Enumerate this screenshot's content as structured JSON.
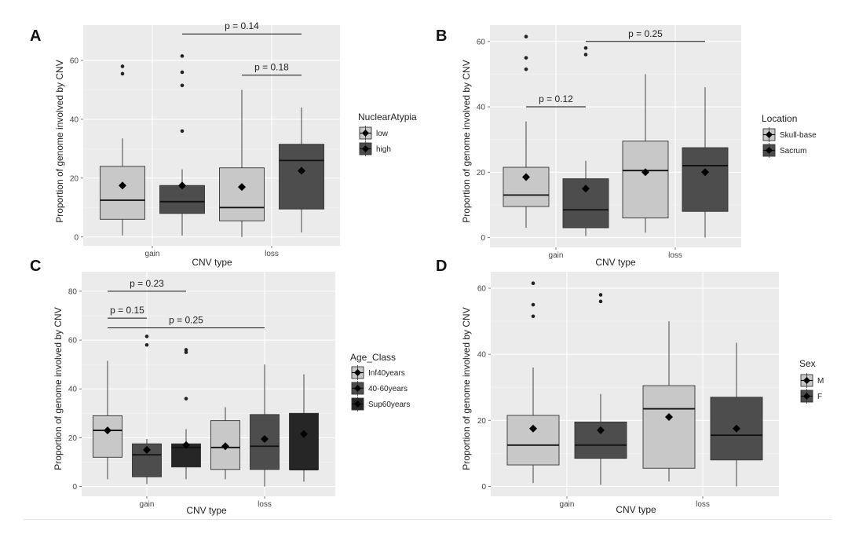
{
  "colors": {
    "panel_bg": "#ebebeb",
    "grid_major": "#ffffff",
    "fill_light": "#c8c8c8",
    "fill_mid": "#4d4d4d",
    "fill_dark": "#262626",
    "line": "#333333",
    "text": "#222222"
  },
  "chart_data": [
    {
      "panel_label": "A",
      "type": "box",
      "xlabel": "CNV type",
      "ylabel": "Proportion of genome involved by CNV",
      "categories": [
        "gain",
        "loss"
      ],
      "ylim": [
        -3,
        72
      ],
      "yticks": [
        0,
        20,
        40,
        60
      ],
      "legend": {
        "title": "NuclearAtypia",
        "position": "right",
        "entries": [
          {
            "label": "low",
            "fill": "#c8c8c8"
          },
          {
            "label": "high",
            "fill": "#4d4d4d"
          }
        ]
      },
      "boxes": [
        {
          "category": "gain",
          "group": "low",
          "fill": "#c8c8c8",
          "min": 0.5,
          "q1": 6,
          "median": 12.5,
          "q3": 24,
          "max": 33.5,
          "mean": 17.5,
          "outliers": [
            55.5,
            58
          ]
        },
        {
          "category": "gain",
          "group": "high",
          "fill": "#4d4d4d",
          "min": 0.5,
          "q1": 8,
          "median": 12,
          "q3": 17.5,
          "max": 23,
          "mean": 17.5,
          "outliers": [
            36,
            51.5,
            56,
            61.5
          ]
        },
        {
          "category": "loss",
          "group": "low",
          "fill": "#c8c8c8",
          "min": 0,
          "q1": 5.5,
          "median": 10,
          "q3": 23.5,
          "max": 50,
          "mean": 17,
          "outliers": []
        },
        {
          "category": "loss",
          "group": "high",
          "fill": "#4d4d4d",
          "min": 1.5,
          "q1": 9.5,
          "median": 26,
          "q3": 31.5,
          "max": 44,
          "mean": 22.5,
          "outliers": []
        }
      ],
      "comparisons": [
        {
          "label": "p = 0.14",
          "from_box": 1,
          "to_box": 3,
          "y": 69
        },
        {
          "label": "p = 0.18",
          "from_box": 2,
          "to_box": 3,
          "y": 55
        }
      ]
    },
    {
      "panel_label": "B",
      "type": "box",
      "xlabel": "CNV type",
      "ylabel": "Proportion of genome involved by CNV",
      "categories": [
        "gain",
        "loss"
      ],
      "ylim": [
        -3,
        65
      ],
      "yticks": [
        0,
        20,
        40,
        60
      ],
      "legend": {
        "title": "Location",
        "position": "right",
        "entries": [
          {
            "label": "Skull-base",
            "fill": "#c8c8c8"
          },
          {
            "label": "Sacrum",
            "fill": "#4d4d4d"
          }
        ]
      },
      "boxes": [
        {
          "category": "gain",
          "group": "Skull-base",
          "fill": "#c8c8c8",
          "min": 3,
          "q1": 9.5,
          "median": 13,
          "q3": 21.5,
          "max": 35.5,
          "mean": 18.5,
          "outliers": [
            51.5,
            55,
            61.5
          ]
        },
        {
          "category": "gain",
          "group": "Sacrum",
          "fill": "#4d4d4d",
          "min": 0.5,
          "q1": 3,
          "median": 8.5,
          "q3": 18,
          "max": 23.5,
          "mean": 15,
          "outliers": [
            56,
            58
          ]
        },
        {
          "category": "loss",
          "group": "Skull-base",
          "fill": "#c8c8c8",
          "min": 1.5,
          "q1": 6,
          "median": 20.5,
          "q3": 29.5,
          "max": 50,
          "mean": 20,
          "outliers": []
        },
        {
          "category": "loss",
          "group": "Sacrum",
          "fill": "#4d4d4d",
          "min": 0,
          "q1": 8,
          "median": 22,
          "q3": 27.5,
          "max": 46,
          "mean": 20,
          "outliers": []
        }
      ],
      "comparisons": [
        {
          "label": "p = 0.12",
          "from_box": 0,
          "to_box": 1,
          "y": 40
        },
        {
          "label": "p = 0.25",
          "from_box": 1,
          "to_box": 3,
          "y": 60
        }
      ]
    },
    {
      "panel_label": "C",
      "type": "box",
      "xlabel": "CNV type",
      "ylabel": "Proportion of genome involved by CNV",
      "categories": [
        "gain",
        "loss"
      ],
      "ylim": [
        -4,
        88
      ],
      "yticks": [
        0,
        20,
        40,
        60,
        80
      ],
      "legend": {
        "title": "Age_Class",
        "position": "right",
        "entries": [
          {
            "label": "Inf40years",
            "fill": "#c8c8c8"
          },
          {
            "label": "40-60years",
            "fill": "#4d4d4d"
          },
          {
            "label": "Sup60years",
            "fill": "#262626"
          }
        ]
      },
      "boxes": [
        {
          "category": "gain",
          "group": "Inf40years",
          "fill": "#c8c8c8",
          "min": 3,
          "q1": 12,
          "median": 23,
          "q3": 29,
          "max": 51.5,
          "mean": 23,
          "outliers": []
        },
        {
          "category": "gain",
          "group": "40-60years",
          "fill": "#4d4d4d",
          "min": 1,
          "q1": 4,
          "median": 13,
          "q3": 17.5,
          "max": 19.5,
          "mean": 15,
          "outliers": [
            58,
            61.5
          ]
        },
        {
          "category": "gain",
          "group": "Sup60years",
          "fill": "#262626",
          "min": 3,
          "q1": 8,
          "median": 16,
          "q3": 17.5,
          "max": 23.5,
          "mean": 17,
          "outliers": [
            36,
            55,
            56
          ]
        },
        {
          "category": "loss",
          "group": "Inf40years",
          "fill": "#c8c8c8",
          "min": 3,
          "q1": 7,
          "median": 16,
          "q3": 27,
          "max": 32.5,
          "mean": 16.5,
          "outliers": []
        },
        {
          "category": "loss",
          "group": "40-60years",
          "fill": "#4d4d4d",
          "min": 0,
          "q1": 7,
          "median": 16.5,
          "q3": 29.5,
          "max": 50,
          "mean": 19.5,
          "outliers": []
        },
        {
          "category": "loss",
          "group": "Sup60years",
          "fill": "#262626",
          "min": 2,
          "q1": 7,
          "median": 7,
          "q3": 30,
          "max": 46,
          "mean": 21.5,
          "outliers": []
        }
      ],
      "comparisons": [
        {
          "label": "p = 0.23",
          "from_box": 0,
          "to_box": 2,
          "y": 80
        },
        {
          "label": "p = 0.15",
          "from_box": 0,
          "to_box": 1,
          "y": 69
        },
        {
          "label": "p = 0.25",
          "from_box": 0,
          "to_box": 4,
          "y": 65
        }
      ]
    },
    {
      "panel_label": "D",
      "type": "box",
      "xlabel": "CNV type",
      "ylabel": "Proportion of genome involved by CNV",
      "categories": [
        "gain",
        "loss"
      ],
      "ylim": [
        -3,
        65
      ],
      "yticks": [
        0,
        20,
        40,
        60
      ],
      "legend": {
        "title": "Sex",
        "position": "right",
        "entries": [
          {
            "label": "M",
            "fill": "#c8c8c8"
          },
          {
            "label": "F",
            "fill": "#4d4d4d"
          }
        ]
      },
      "boxes": [
        {
          "category": "gain",
          "group": "M",
          "fill": "#c8c8c8",
          "min": 1,
          "q1": 6.5,
          "median": 12.5,
          "q3": 21.5,
          "max": 36,
          "mean": 17.5,
          "outliers": [
            51.5,
            55,
            61.5
          ]
        },
        {
          "category": "gain",
          "group": "F",
          "fill": "#4d4d4d",
          "min": 0.5,
          "q1": 8.5,
          "median": 12.5,
          "q3": 19.5,
          "max": 28,
          "mean": 17,
          "outliers": [
            56,
            58
          ]
        },
        {
          "category": "loss",
          "group": "M",
          "fill": "#c8c8c8",
          "min": 1.5,
          "q1": 5.5,
          "median": 23.5,
          "q3": 30.5,
          "max": 50,
          "mean": 21,
          "outliers": []
        },
        {
          "category": "loss",
          "group": "F",
          "fill": "#4d4d4d",
          "min": 0,
          "q1": 8,
          "median": 15.5,
          "q3": 27,
          "max": 43.5,
          "mean": 17.5,
          "outliers": []
        }
      ],
      "comparisons": []
    }
  ]
}
